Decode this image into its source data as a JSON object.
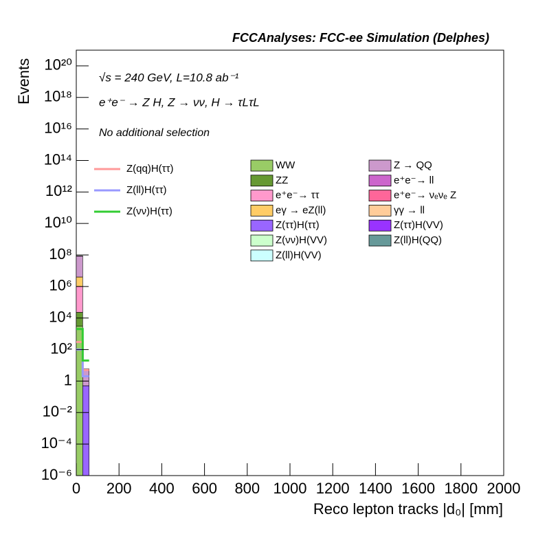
{
  "chart_data": {
    "type": "histogram",
    "title": "FCCAnalyses: FCC-ee Simulation (Delphes)",
    "annotations": [
      "√s = 240 GeV, L=10.8 ab⁻¹",
      "e⁺e⁻ → Z H, Z → νν, H → τLτL",
      "No additional selection"
    ],
    "x_label": "Reco lepton tracks |d₀| [mm]",
    "y_label": "Events",
    "log_y": true,
    "xlim": [
      0,
      2000
    ],
    "xticks": [
      0,
      200,
      400,
      600,
      800,
      1000,
      1200,
      1400,
      1600,
      1800,
      2000
    ],
    "ylim": [
      1e-06,
      1e+21
    ],
    "yticks": [
      {
        "value": 1e-06,
        "label": "10⁻⁶"
      },
      {
        "value": 0.0001,
        "label": "10⁻⁴"
      },
      {
        "value": 0.01,
        "label": "10⁻²"
      },
      1,
      {
        "value": 100,
        "label": "10²"
      },
      {
        "value": 10000.0,
        "label": "10⁴"
      },
      {
        "value": 1000000.0,
        "label": "10⁶"
      },
      {
        "value": 100000000.0,
        "label": "10⁸"
      },
      {
        "value": 10000000000.0,
        "label": "10¹⁰"
      },
      {
        "value": 1000000000000.0,
        "label": "10¹²"
      },
      {
        "value": 100000000000000.0,
        "label": "10¹⁴"
      },
      {
        "value": 1e+16,
        "label": "10¹⁶"
      },
      {
        "value": 1e+18,
        "label": "10¹⁸"
      },
      {
        "value": 1e+20,
        "label": "10²⁰"
      }
    ],
    "bins": [
      0,
      30,
      60
    ],
    "series": [
      {
        "name": "WW",
        "color": "#99cc66",
        "values": [
          3000,
          0
        ]
      },
      {
        "name": "ZZ",
        "color": "#669933",
        "values": [
          20000,
          0
        ]
      },
      {
        "name": "e⁺e⁻→ ττ",
        "color": "#ff99cc",
        "values": [
          1000000,
          0
        ]
      },
      {
        "name": "eγ → eZ(ll)",
        "color": "#ffcc66",
        "values": [
          3000000,
          0
        ]
      },
      {
        "name": "Z(ττ)H(ττ)",
        "color": "#9966ff",
        "values": [
          3,
          0.5
        ]
      },
      {
        "name": "Z(νν)H(VV)",
        "color": "#ccffcc",
        "values": [
          0.5,
          0
        ]
      },
      {
        "name": "Z(ll)H(VV)",
        "color": "#ccffff",
        "values": [
          0.2,
          0
        ]
      },
      {
        "name": "Z → QQ",
        "color": "#cc99cc",
        "values": [
          80000000,
          5
        ]
      },
      {
        "name": "e⁺e⁻→ ll",
        "color": "#cc66cc",
        "values": [
          2000000,
          0.3
        ]
      },
      {
        "name": "e⁺e⁻→ νₑνₑ Z",
        "color": "#ff6699",
        "values": [
          1000,
          0
        ]
      },
      {
        "name": "γγ → ll",
        "color": "#ffcc99",
        "values": [
          500000,
          0
        ]
      },
      {
        "name": "Z(ττ)H(VV)",
        "color": "#9933ff",
        "values": [
          1,
          0
        ]
      },
      {
        "name": "Z(ll)H(QQ)",
        "color": "#669999",
        "values": [
          0.5,
          0.1
        ]
      }
    ],
    "signal_series": [
      {
        "name": "Z(qq)H(ττ)",
        "color": "#ff9999",
        "values": [
          300,
          5
        ]
      },
      {
        "name": "Z(ll)H(ττ)",
        "color": "#9999ff",
        "values": [
          100,
          2
        ]
      },
      {
        "name": "Z(νν)H(ττ)",
        "color": "#33cc33",
        "values": [
          2000,
          20
        ]
      }
    ]
  }
}
